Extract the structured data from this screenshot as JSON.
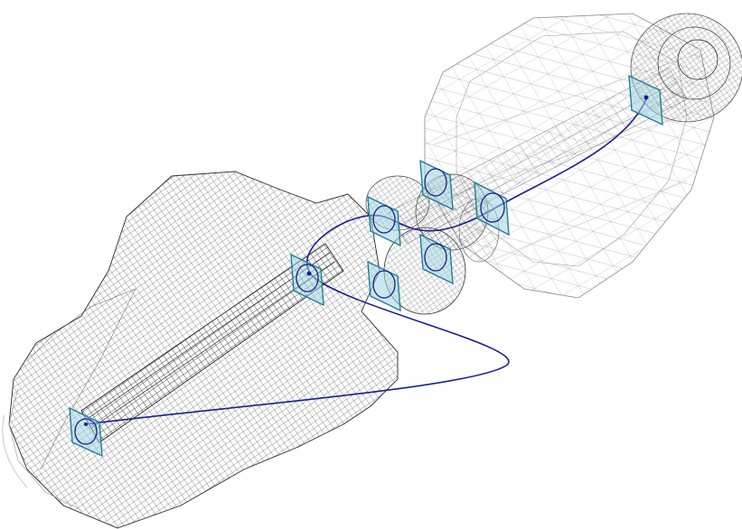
{
  "scene": {
    "background": "#ffffff",
    "wire_color_dense": "#1a1a1a",
    "wire_color_light": "#8a8a8a",
    "path_color": "#1a1f8c",
    "frame_fill": "#9fd4de",
    "frame_stroke": "#1f7f99",
    "icons": [
      "wireframe-body-icon",
      "gear-icon",
      "reference-frame-icon",
      "path-curve-icon"
    ]
  }
}
